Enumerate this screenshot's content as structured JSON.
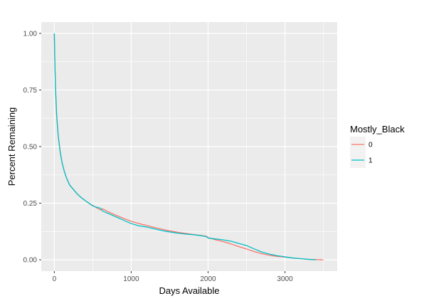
{
  "chart_data": {
    "type": "line",
    "xlabel": "Days Available",
    "ylabel": "Percent Remaining",
    "xlim": [
      -170,
      3680
    ],
    "ylim": [
      -0.05,
      1.05
    ],
    "x_ticks": [
      0,
      1000,
      2000,
      3000
    ],
    "x_tick_labels": [
      "0",
      "1000",
      "2000",
      "3000"
    ],
    "y_ticks": [
      0,
      0.25,
      0.5,
      0.75,
      1.0
    ],
    "y_tick_labels": [
      "0.00",
      "0.25",
      "0.50",
      "0.75",
      "1.00"
    ],
    "grid": true,
    "legend": {
      "title": "Mostly_Black",
      "position": "right",
      "entries": [
        "0",
        "1"
      ]
    },
    "series": [
      {
        "name": "0",
        "color": "#F8766D",
        "x": [
          0,
          5,
          15,
          30,
          50,
          75,
          100,
          130,
          160,
          200,
          250,
          300,
          350,
          400,
          450,
          500,
          550,
          600,
          630,
          700,
          800,
          900,
          1000,
          1100,
          1200,
          1300,
          1400,
          1500,
          1600,
          1700,
          1800,
          1900,
          1980,
          2000,
          2100,
          2200,
          2300,
          2400,
          2500,
          2600,
          2700,
          2800,
          2900,
          3000,
          3100,
          3200,
          3300,
          3400,
          3500
        ],
        "y": [
          1.0,
          0.9,
          0.76,
          0.64,
          0.55,
          0.48,
          0.43,
          0.39,
          0.36,
          0.33,
          0.31,
          0.29,
          0.275,
          0.262,
          0.25,
          0.24,
          0.23,
          0.22,
          0.225,
          0.212,
          0.197,
          0.183,
          0.17,
          0.16,
          0.152,
          0.143,
          0.135,
          0.128,
          0.122,
          0.117,
          0.112,
          0.108,
          0.104,
          0.098,
          0.088,
          0.08,
          0.07,
          0.058,
          0.048,
          0.036,
          0.027,
          0.02,
          0.015,
          0.012,
          0.008,
          0.005,
          0.002,
          0.001,
          0.0
        ]
      },
      {
        "name": "1",
        "color": "#00BFC4",
        "x": [
          0,
          5,
          15,
          30,
          50,
          75,
          100,
          130,
          160,
          200,
          250,
          300,
          350,
          400,
          450,
          500,
          550,
          600,
          630,
          700,
          800,
          900,
          1000,
          1100,
          1200,
          1300,
          1400,
          1500,
          1600,
          1700,
          1800,
          1900,
          1980,
          2000,
          2100,
          2200,
          2300,
          2400,
          2500,
          2600,
          2700,
          2800,
          2900,
          3000,
          3100,
          3200,
          3300,
          3400
        ],
        "y": [
          1.0,
          0.9,
          0.76,
          0.64,
          0.55,
          0.48,
          0.43,
          0.39,
          0.36,
          0.33,
          0.31,
          0.29,
          0.275,
          0.262,
          0.25,
          0.238,
          0.232,
          0.228,
          0.215,
          0.205,
          0.19,
          0.175,
          0.16,
          0.15,
          0.145,
          0.137,
          0.129,
          0.123,
          0.118,
          0.114,
          0.111,
          0.107,
          0.102,
          0.096,
          0.092,
          0.088,
          0.082,
          0.072,
          0.063,
          0.048,
          0.034,
          0.025,
          0.018,
          0.013,
          0.008,
          0.005,
          0.002,
          0.0
        ]
      }
    ]
  }
}
